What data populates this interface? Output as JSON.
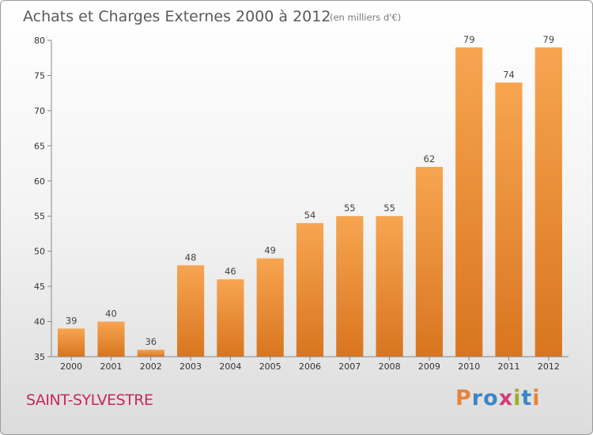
{
  "chart_data": {
    "type": "bar",
    "title": "Achats et Charges Externes 2000 à 2012",
    "subtitle": "(en milliers d'€)",
    "categories": [
      "2000",
      "2001",
      "2002",
      "2003",
      "2004",
      "2005",
      "2006",
      "2007",
      "2008",
      "2009",
      "2010",
      "2011",
      "2012"
    ],
    "values": [
      39,
      40,
      36,
      48,
      46,
      49,
      54,
      55,
      55,
      62,
      79,
      74,
      79
    ],
    "ylim": [
      35,
      80
    ],
    "yticks": [
      35,
      40,
      45,
      50,
      55,
      60,
      65,
      70,
      75,
      80
    ],
    "grid": false,
    "bar_color_top": "#f7a551",
    "bar_color_bottom": "#d9751f"
  },
  "footer": {
    "place": "SAINT-SYLVESTRE",
    "logo_letters": [
      "P",
      "r",
      "o",
      "x",
      "i",
      "t",
      "i"
    ],
    "logo_colors": [
      "#e8833a",
      "#3a86c8",
      "#3a86c8",
      "#d23c78",
      "#9ab02c",
      "#3a86c8",
      "#e8833a"
    ]
  }
}
